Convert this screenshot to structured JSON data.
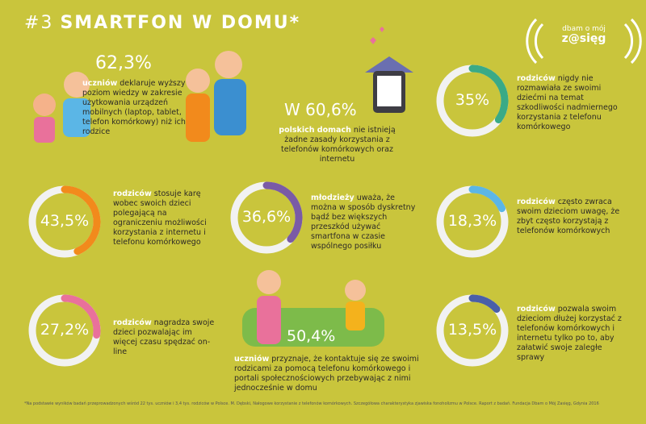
{
  "header": {
    "number": "#3",
    "title": "SMARTFON W DOMU*",
    "logo_top": "dbam o mój",
    "logo_bottom": "z@sięg"
  },
  "highlights": [
    {
      "value": 62.3,
      "label": "62,3%",
      "lead": "uczniów",
      "text": "deklaruje wyższy poziom wiedzy w zakresie użytkowania urządzeń mobilnych (laptop, tablet, telefon komórkowy) niż ich rodzice"
    },
    {
      "prefix": "W",
      "value": 60.6,
      "label": "60,6%",
      "lead": "polskich domach",
      "text": "nie istnieją żadne zasady korzystania z telefonów komórkowych oraz internetu"
    },
    {
      "value": 50.4,
      "label": "50,4%",
      "lead": "uczniów",
      "text": "przyznaje, że kontaktuje się ze swoimi rodzicami za pomocą telefonu komórkowego i portali społecznościowych przebywając z nimi jednocześnie w domu"
    }
  ],
  "rings": [
    {
      "value": 35,
      "label": "35%",
      "color": "#3aaa86",
      "lead": "rodziców",
      "text": "nigdy nie rozmawiała ze swoimi dziećmi na temat szkodliwości nadmiernego korzystania z telefonu komórkowego"
    },
    {
      "value": 43.5,
      "label": "43,5%",
      "color": "#f28a1c",
      "lead": "rodziców",
      "text": "stosuje karę wobec swoich dzieci polegającą na ograniczeniu możliwości korzystania z internetu i telefonu komórkowego"
    },
    {
      "value": 36.6,
      "label": "36,6%",
      "color": "#7a5ba6",
      "lead": "młodzieży",
      "text": "uważa, że można w sposób dyskretny bądź bez większych przeszkód używać smartfona w czasie wspólnego posiłku"
    },
    {
      "value": 18.3,
      "label": "18,3%",
      "color": "#5bb6e6",
      "lead": "rodziców",
      "text": "często zwraca swoim dzieciom uwagę, że zbyt często korzystają z telefonów komórkowych"
    },
    {
      "value": 27.2,
      "label": "27,2%",
      "color": "#e9719b",
      "lead": "rodziców",
      "text": "nagradza swoje dzieci pozwalając im więcej czasu spędzać on-line"
    },
    {
      "value": 13.5,
      "label": "13,5%",
      "color": "#4a5fa8",
      "lead": "rodziców",
      "text": "pozwala swoim dzieciom dłużej korzystać z telefonów komórkowych i internetu tylko po to, aby załatwić swoje zaległe sprawy"
    }
  ],
  "footnote": "*Na podstawie wyników badań przeprowadzonych wśród 22 tys. uczniów i 3,4 tys. rodziców w Polsce. M. Dębski, Nałogowe korzystanie z telefonów komórkowych. Szczegółowa charakterystyka zjawiska fonoholizmu w Polsce. Raport z badań. Fundacja Dbam o Mój Zasięg, Gdynia 2016"
}
